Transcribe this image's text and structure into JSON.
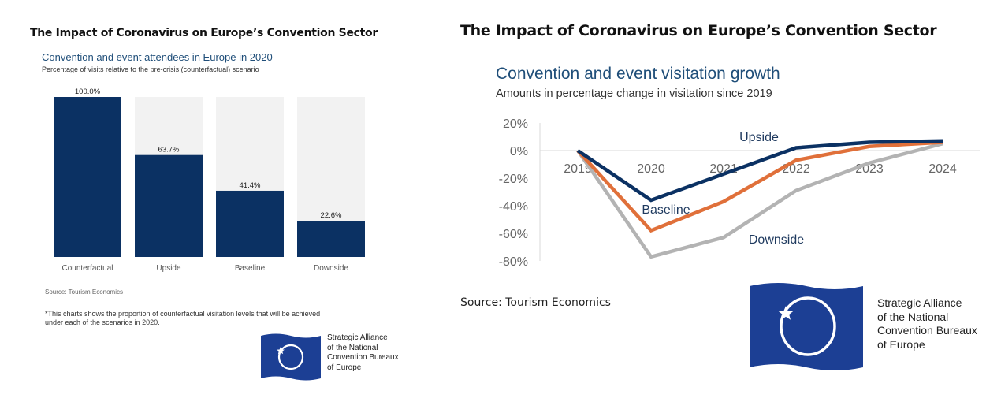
{
  "left_panel": {
    "title": "The Impact of Coronavirus on Europe’s Convention Sector",
    "chart_title": "Convention and event attendees in Europe in 2020",
    "chart_subtitle": "Percentage of visits relative to the  pre-crisis (counterfactual) scenario",
    "source": "Source: Tourism Economics",
    "note_line1": "*This charts shows the proportion of counterfactual visitation levels that will be achieved",
    "note_line2": "under each of the scenarios in 2020.",
    "logo_text": [
      "Strategic Alliance",
      "of the National",
      "Convention Bureaux",
      "of Europe"
    ]
  },
  "right_panel": {
    "title": "The Impact of Coronavirus on Europe’s Convention Sector",
    "chart_title": "Convention and event visitation growth",
    "chart_subtitle": "Amounts in percentage change in visitation since 2019",
    "source": "Source: Tourism Economics",
    "logo_text": [
      "Strategic Alliance",
      "of the National",
      "Convention Bureaux",
      "of Europe"
    ]
  },
  "colors": {
    "navy": "#0b3163",
    "bar_bg": "#f2f2f2",
    "orange": "#e0703a",
    "gray": "#b3b3b3",
    "flag_blue": "#1c3f94",
    "axis_text": "#666666"
  },
  "chart_data": [
    {
      "type": "bar",
      "title": "Convention and event attendees in Europe in 2020",
      "subtitle": "Percentage of visits relative to the  pre-crisis (counterfactual) scenario",
      "categories": [
        "Counterfactual",
        "Upside",
        "Baseline",
        "Downside"
      ],
      "values": [
        100.0,
        63.7,
        41.4,
        22.6
      ],
      "labels": [
        "100.0%",
        "63.7%",
        "41.4%",
        "22.6%"
      ],
      "ylim": [
        0,
        100
      ],
      "xlabel": "",
      "ylabel": "",
      "grid": false
    },
    {
      "type": "line",
      "title": "Convention and event visitation growth",
      "subtitle": "Amounts in percentage change in visitation since 2019",
      "x": [
        "2019",
        "2020",
        "2021",
        "2022",
        "2023",
        "2024"
      ],
      "series": [
        {
          "name": "Upside",
          "color": "#0b3163",
          "values": [
            0,
            -36,
            -17,
            2,
            6,
            7
          ]
        },
        {
          "name": "Baseline",
          "color": "#e0703a",
          "values": [
            0,
            -58,
            -37,
            -7,
            3,
            6
          ]
        },
        {
          "name": "Downside",
          "color": "#b3b3b3",
          "values": [
            0,
            -77,
            -63,
            -29,
            -9,
            5
          ]
        }
      ],
      "yticks": [
        "20%",
        "0%",
        "-20%",
        "-40%",
        "-60%",
        "-80%"
      ],
      "ytick_values": [
        20,
        0,
        -20,
        -40,
        -60,
        -80
      ],
      "ylim": [
        -80,
        20
      ],
      "xlabel": "",
      "ylabel": "",
      "grid": false,
      "legend": "inline labels"
    }
  ]
}
